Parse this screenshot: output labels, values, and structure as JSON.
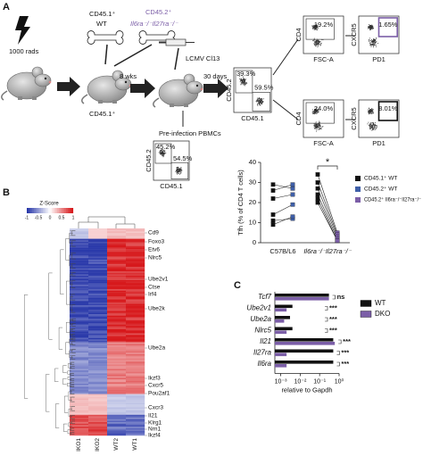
{
  "panels": {
    "a": "A",
    "b": "B",
    "c": "C"
  },
  "schematic": {
    "irradiation": "1000 rads",
    "donor_wt": "CD45.1⁺",
    "donor_wt_sub": "WT",
    "donor_ko": "CD45.2⁺",
    "donor_ko_sub": "Il6ra⁻/⁻Il27ra⁻/⁻",
    "recipient": "CD45.1⁺",
    "wait": "8 wks",
    "infection": "LCMV Cl13",
    "harvest": "30 days",
    "pbmc": "Pre-infection PBMCs"
  },
  "flow": {
    "main": {
      "y": "CD45.2",
      "x": "CD45.1",
      "upper": "39.3%",
      "lower": "59.5%"
    },
    "pbmc": {
      "y": "CD45.2",
      "x": "CD45.1",
      "upper": "45.2%",
      "lower": "54.5%"
    },
    "cd4_ko": {
      "y": "CD4",
      "x": "FSC-A",
      "gate": "19.2%"
    },
    "tfh_ko": {
      "y": "CXCR5",
      "x": "PD1",
      "gate": "1.65%"
    },
    "cd4_wt": {
      "y": "CD4",
      "x": "FSC-A",
      "gate": "24.0%"
    },
    "tfh_wt": {
      "y": "CXCR5",
      "x": "PD1",
      "gate": "8.01%"
    }
  },
  "heatmap": {
    "legend_title": "Z-Score",
    "legend_ticks": [
      -1,
      -0.5,
      0,
      0.5,
      1
    ],
    "columns": [
      "IKO1",
      "IKO2",
      "WT2",
      "WT1"
    ],
    "genes": [
      "Cd9",
      "Foxo3",
      "Etv6",
      "Nlrc5",
      "Ube2v1",
      "Ctse",
      "Irf4",
      "Ube2k",
      "Ube2a",
      "Ikzf3",
      "Cxcr5",
      "Pou2af1",
      "Cxcr3",
      "Il21",
      "Klrg1",
      "Nrn1",
      "Ikzf4"
    ]
  },
  "chart_data": [
    {
      "type": "paired-dot",
      "ylabel": "Tfh (% of CD4 T cells)",
      "categories": [
        "C57B/L6",
        "Il6ra⁻/⁻Il27ra⁻/⁻"
      ],
      "series": [
        {
          "name": "CD45.1⁺ WT",
          "color": "#111111",
          "values": [
            [
              29,
              26,
              22,
              14,
              11,
              9
            ],
            [
              34,
              30,
              27,
              24,
              22,
              20
            ]
          ]
        },
        {
          "name": "CD45.2⁺ WT",
          "color": "#3f5fa8",
          "values": [
            [
              27,
              29,
              24,
              19,
              12,
              13
            ],
            null
          ]
        },
        {
          "name": "CD45.2⁺ Il6ra⁻/⁻Il27ra⁻/⁻",
          "color": "#7b5ea7",
          "values": [
            null,
            [
              5,
              4,
              3,
              2,
              1,
              1
            ]
          ]
        }
      ],
      "ylim": [
        0,
        40
      ],
      "yticks": [
        0,
        10,
        20,
        30,
        40
      ],
      "annotation": "*"
    },
    {
      "type": "hbar",
      "categories": [
        "Tcf7",
        "Ube2v1",
        "Ube2a",
        "Nlrc5",
        "Il21",
        "Il27ra",
        "Il6ra"
      ],
      "series": [
        {
          "name": "WT",
          "color": "#111111",
          "values": [
            0.3,
            0.004,
            0.003,
            0.004,
            0.5,
            0.5,
            0.5
          ]
        },
        {
          "name": "DKO",
          "color": "#7b5ea7",
          "values": [
            0.3,
            0.002,
            0.0015,
            0.002,
            0.6,
            0.002,
            0.002
          ]
        }
      ],
      "significance": [
        "ns",
        "***",
        "***",
        "***",
        "***",
        "***",
        "***"
      ],
      "log_x": true,
      "xlim": [
        0.0005,
        1
      ],
      "xticks": [
        {
          "value": 0.001,
          "label": "10⁻³"
        },
        {
          "value": 0.01,
          "label": "10⁻²"
        },
        {
          "value": 0.1,
          "label": "10⁻¹"
        },
        {
          "value": 1,
          "label": "10⁰"
        }
      ],
      "xlabel": "relative to Gapdh"
    }
  ]
}
